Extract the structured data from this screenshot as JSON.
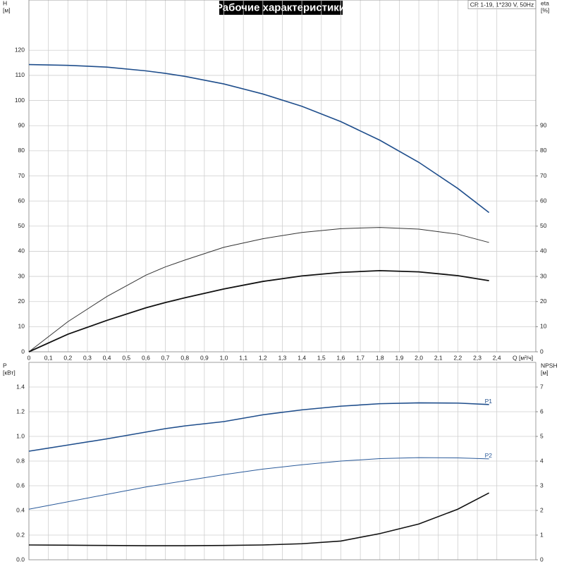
{
  "chart_data": [
    {
      "type": "line",
      "title": "Рабочие характеристики",
      "subtitle": "CR 1-19, 1*230 V, 50Hz",
      "y_label": "H",
      "y_unit": "[м]",
      "y2_label": "eta",
      "y2_unit": "[%]",
      "x_label": "Q [м³/ч]",
      "grid": true,
      "xlim": [
        0,
        2.6
      ],
      "xticks": [
        0,
        {
          "value": 0.1,
          "label": "0,1"
        },
        {
          "value": 0.2,
          "label": "0,2"
        },
        {
          "value": 0.3,
          "label": "0,3"
        },
        {
          "value": 0.4,
          "label": "0,4"
        },
        {
          "value": 0.5,
          "label": "0,5"
        },
        {
          "value": 0.6,
          "label": "0,6"
        },
        {
          "value": 0.7,
          "label": "0,7"
        },
        {
          "value": 0.8,
          "label": "0,8"
        },
        {
          "value": 0.9,
          "label": "0,9"
        },
        {
          "value": 1.0,
          "label": "1,0"
        },
        {
          "value": 1.1,
          "label": "1,1"
        },
        {
          "value": 1.2,
          "label": "1,2"
        },
        {
          "value": 1.3,
          "label": "1,3"
        },
        {
          "value": 1.4,
          "label": "1,4"
        },
        {
          "value": 1.5,
          "label": "1,5"
        },
        {
          "value": 1.6,
          "label": "1,6"
        },
        {
          "value": 1.7,
          "label": "1,7"
        },
        {
          "value": 1.8,
          "label": "1,8"
        },
        {
          "value": 1.9,
          "label": "1,9"
        },
        {
          "value": 2.0,
          "label": "2,0"
        },
        {
          "value": 2.1,
          "label": "2,1"
        },
        {
          "value": 2.2,
          "label": "2,2"
        },
        {
          "value": 2.3,
          "label": "2,3"
        },
        {
          "value": 2.4,
          "label": "2,4"
        }
      ],
      "ylim": [
        0,
        140
      ],
      "yticks": [
        0,
        10,
        20,
        30,
        40,
        50,
        60,
        70,
        80,
        90,
        100,
        110,
        120
      ],
      "y2lim": [
        0,
        140
      ],
      "y2ticks": [
        0,
        10,
        20,
        30,
        40,
        50,
        60,
        70,
        80,
        90
      ],
      "x": [
        0,
        0.2,
        0.4,
        0.6,
        0.7,
        0.8,
        1.0,
        1.2,
        1.4,
        1.6,
        1.8,
        2.0,
        2.2,
        2.36
      ],
      "series": [
        {
          "color": "#1f4e8c",
          "width": 1.6,
          "values": [
            114.3,
            114.0,
            113.3,
            111.8,
            110.8,
            109.6,
            106.6,
            102.6,
            97.7,
            91.6,
            84.2,
            75.4,
            65.0,
            55.4
          ]
        },
        {
          "color": "#333333",
          "width": 1.0,
          "axis": "y2",
          "values": [
            0,
            12,
            22,
            30.5,
            33.8,
            36.5,
            41.6,
            45,
            47.5,
            49,
            49.5,
            48.8,
            46.8,
            43.5
          ]
        },
        {
          "color": "#111111",
          "width": 1.8,
          "axis": "y2",
          "values": [
            0,
            7,
            12.5,
            17.5,
            19.6,
            21.5,
            25,
            28,
            30.2,
            31.6,
            32.3,
            31.8,
            30.3,
            28.3
          ]
        }
      ]
    },
    {
      "type": "line",
      "y_label": "P",
      "y_unit": "[кВт]",
      "y2_label": "NPSH",
      "y2_unit": "[м]",
      "grid": true,
      "xlim": [
        0,
        2.6
      ],
      "ylim": [
        0,
        1.6
      ],
      "yticks": [
        {
          "value": 0,
          "label": "0.0"
        },
        0.2,
        0.4,
        0.6,
        0.8,
        {
          "value": 1,
          "label": "1.0"
        },
        1.2,
        1.4
      ],
      "y2lim": [
        0,
        8
      ],
      "y2ticks": [
        0,
        1,
        2,
        3,
        4,
        5,
        6,
        7
      ],
      "x": [
        0,
        0.2,
        0.4,
        0.6,
        0.7,
        0.8,
        1.0,
        1.2,
        1.4,
        1.6,
        1.8,
        2.0,
        2.2,
        2.36
      ],
      "series": [
        {
          "name": "P1",
          "color": "#1f4e8c",
          "width": 1.6,
          "values": [
            0.88,
            0.93,
            0.98,
            1.035,
            1.063,
            1.085,
            1.12,
            1.175,
            1.215,
            1.245,
            1.265,
            1.272,
            1.27,
            1.258
          ]
        },
        {
          "name": "P2",
          "color": "#2a5a9a",
          "width": 1.0,
          "values": [
            0.41,
            0.47,
            0.53,
            0.59,
            0.615,
            0.64,
            0.69,
            0.735,
            0.77,
            0.8,
            0.82,
            0.828,
            0.826,
            0.818
          ]
        },
        {
          "color": "#111111",
          "width": 1.6,
          "axis": "y2",
          "values": [
            0.6,
            0.59,
            0.58,
            0.57,
            0.57,
            0.57,
            0.58,
            0.6,
            0.65,
            0.76,
            1.06,
            1.45,
            2.05,
            2.71
          ]
        }
      ]
    }
  ]
}
